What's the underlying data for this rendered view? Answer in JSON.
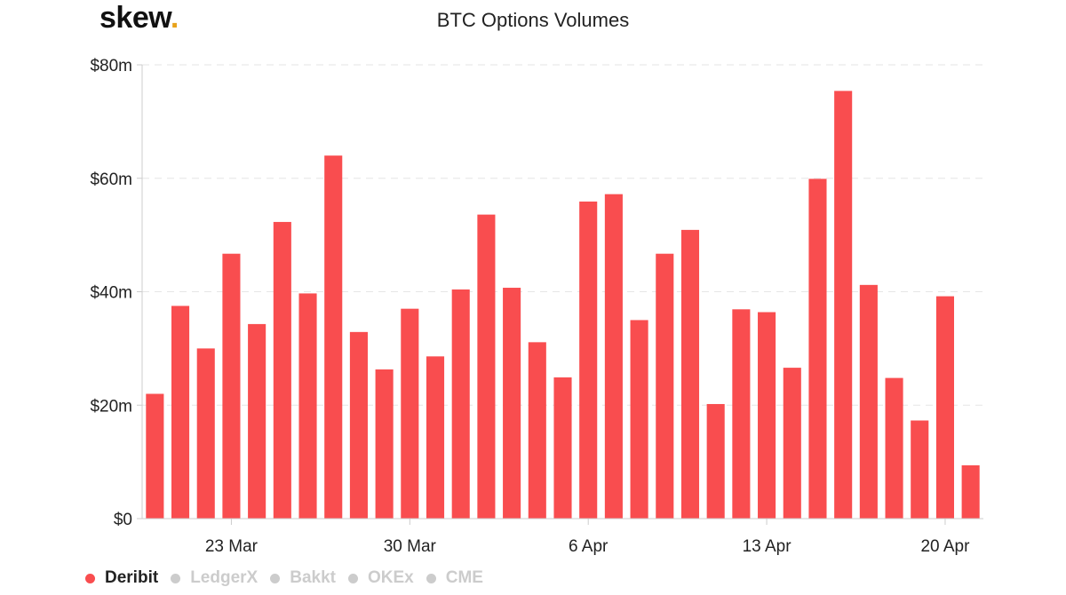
{
  "brand": {
    "name": "skew",
    "dot": "."
  },
  "title": "BTC Options Volumes",
  "colors": {
    "bar": "#f94d4f",
    "grid": "#e6e6e6",
    "axis": "#cccccc",
    "inactive": "#cccccc",
    "brand_dot": "#e8a21a"
  },
  "legend": [
    {
      "label": "Deribit",
      "active": true
    },
    {
      "label": "LedgerX",
      "active": false
    },
    {
      "label": "Bakkt",
      "active": false
    },
    {
      "label": "OKEx",
      "active": false
    },
    {
      "label": "CME",
      "active": false
    }
  ],
  "chart_data": {
    "type": "bar",
    "title": "BTC Options Volumes",
    "unit": "USD millions",
    "ylim": [
      0,
      80
    ],
    "y_ticks": [
      "$0",
      "$20m",
      "$40m",
      "$60m",
      "$80m"
    ],
    "x_ticks": [
      "23 Mar",
      "30 Mar",
      "6 Apr",
      "13 Apr",
      "20 Apr"
    ],
    "grid": true,
    "legend_position": "bottom-left",
    "series": [
      {
        "name": "Deribit",
        "dates": [
          "2020-03-20",
          "2020-03-21",
          "2020-03-22",
          "2020-03-23",
          "2020-03-24",
          "2020-03-25",
          "2020-03-26",
          "2020-03-27",
          "2020-03-28",
          "2020-03-29",
          "2020-03-30",
          "2020-03-31",
          "2020-04-01",
          "2020-04-02",
          "2020-04-03",
          "2020-04-04",
          "2020-04-05",
          "2020-04-06",
          "2020-04-07",
          "2020-04-08",
          "2020-04-09",
          "2020-04-10",
          "2020-04-11",
          "2020-04-12",
          "2020-04-13",
          "2020-04-14",
          "2020-04-15",
          "2020-04-16",
          "2020-04-17",
          "2020-04-18",
          "2020-04-19",
          "2020-04-20",
          "2020-04-21"
        ],
        "values": [
          22,
          37.5,
          30,
          46.7,
          34.3,
          52.3,
          39.7,
          64,
          32.9,
          26.3,
          37,
          28.6,
          40.4,
          53.6,
          40.7,
          31.1,
          24.9,
          55.9,
          57.2,
          35,
          46.7,
          50.9,
          20.2,
          36.9,
          36.4,
          26.6,
          59.9,
          75.4,
          41.2,
          24.8,
          17.3,
          39.2,
          9.4
        ]
      }
    ]
  }
}
